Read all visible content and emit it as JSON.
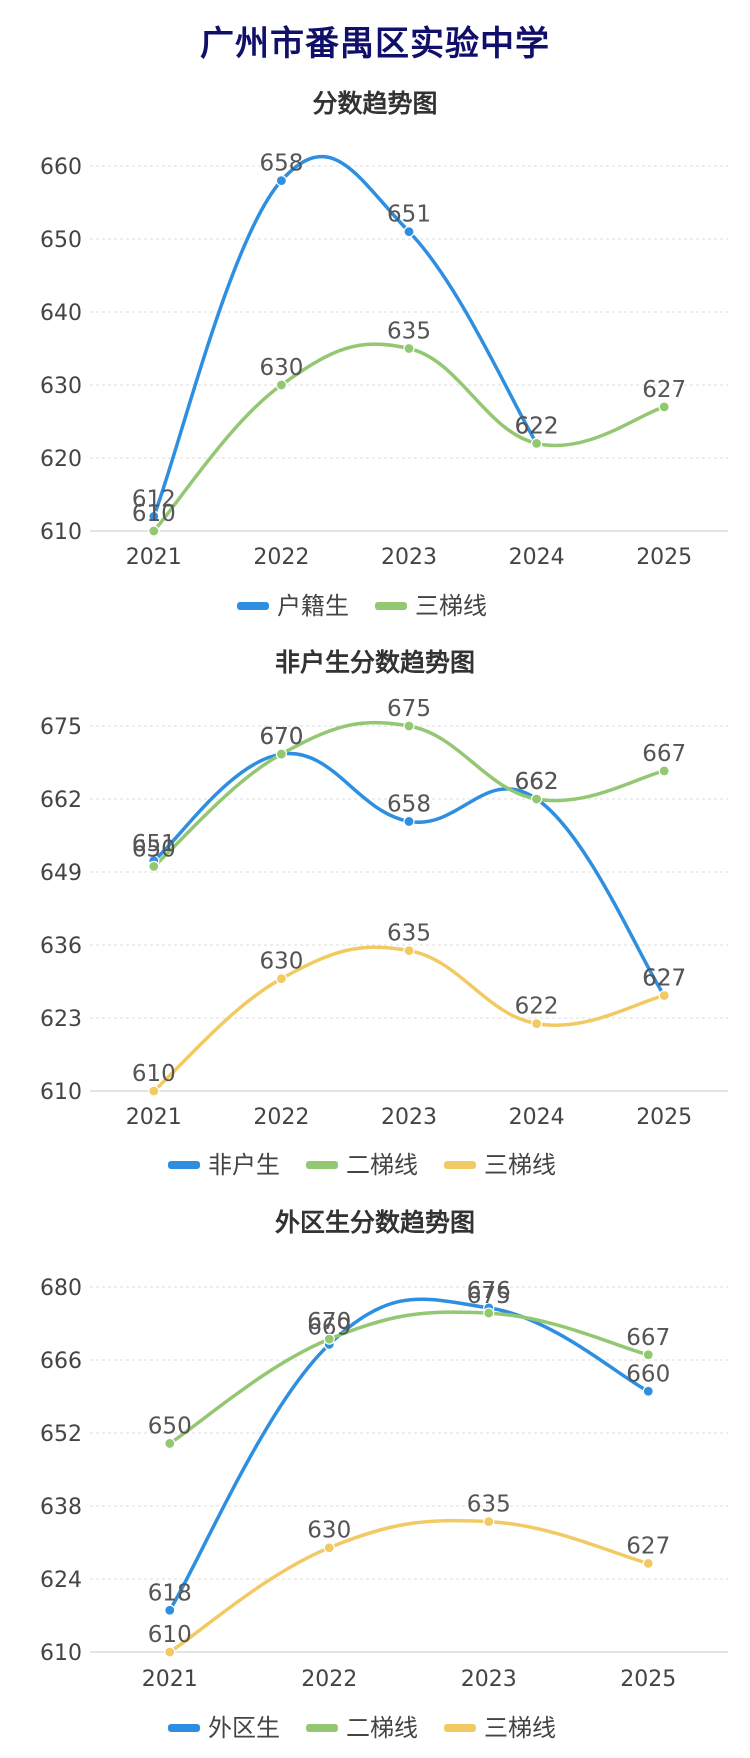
{
  "page": {
    "title": "广州市番禺区实验中学"
  },
  "colors": {
    "blue": "#2e8fe0",
    "green": "#93c772",
    "yellow": "#f2ca64",
    "title": "#10106a"
  },
  "chart_data": [
    {
      "type": "line",
      "title": "分数趋势图",
      "categories": [
        "2021",
        "2022",
        "2023",
        "2024",
        "2025"
      ],
      "ylim": [
        610,
        660
      ],
      "yticks": [
        610,
        620,
        630,
        640,
        650,
        660
      ],
      "grid": true,
      "legend": "bottom",
      "series": [
        {
          "name": "户籍生",
          "color": "#2e8fe0",
          "values": [
            612,
            658,
            651,
            622,
            null
          ]
        },
        {
          "name": "三梯线",
          "color": "#93c772",
          "values": [
            610,
            630,
            635,
            622,
            627
          ]
        }
      ]
    },
    {
      "type": "line",
      "title": "非户生分数趋势图",
      "categories": [
        "2021",
        "2022",
        "2023",
        "2024",
        "2025"
      ],
      "ylim": [
        610,
        675
      ],
      "yticks": [
        610,
        623,
        636,
        649,
        662,
        675
      ],
      "grid": true,
      "legend": "bottom",
      "series": [
        {
          "name": "非户生",
          "color": "#2e8fe0",
          "values": [
            651,
            670,
            658,
            662,
            627
          ]
        },
        {
          "name": "二梯线",
          "color": "#93c772",
          "values": [
            650,
            670,
            675,
            662,
            667
          ]
        },
        {
          "name": "三梯线",
          "color": "#f2ca64",
          "values": [
            610,
            630,
            635,
            622,
            627
          ]
        }
      ]
    },
    {
      "type": "line",
      "title": "外区生分数趋势图",
      "categories": [
        "2021",
        "2022",
        "2023",
        "2025"
      ],
      "ylim": [
        610,
        680
      ],
      "yticks": [
        610,
        624,
        638,
        652,
        666,
        680
      ],
      "grid": true,
      "legend": "bottom",
      "series": [
        {
          "name": "外区生",
          "color": "#2e8fe0",
          "values": [
            618,
            669,
            676,
            660
          ]
        },
        {
          "name": "二梯线",
          "color": "#93c772",
          "values": [
            650,
            670,
            675,
            667
          ]
        },
        {
          "name": "三梯线",
          "color": "#f2ca64",
          "values": [
            610,
            630,
            635,
            627
          ]
        }
      ]
    }
  ]
}
